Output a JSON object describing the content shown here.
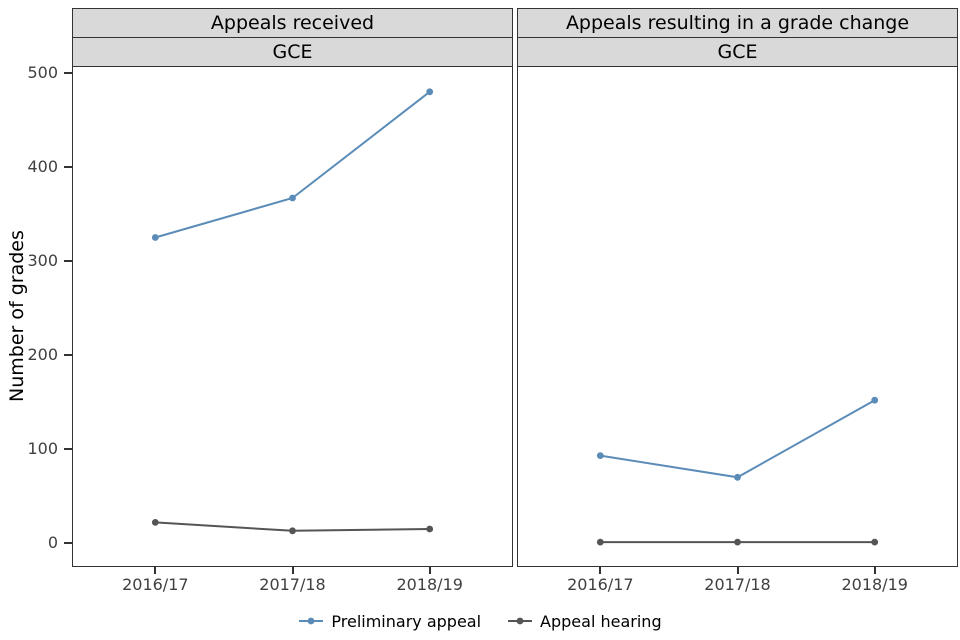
{
  "chart_data": {
    "type": "line",
    "ylabel": "Number of grades",
    "categories": [
      "2016/17",
      "2017/18",
      "2018/19"
    ],
    "yticks": [
      0,
      100,
      200,
      300,
      400,
      500
    ],
    "ylim": [
      -24.4,
      506.4
    ],
    "grid": false,
    "legend_position": "bottom",
    "facets": [
      {
        "label": "Appeals received",
        "sublabel": "GCE",
        "series": [
          {
            "name": "Preliminary appeal",
            "values": [
              325,
              367,
              480
            ]
          },
          {
            "name": "Appeal hearing",
            "values": [
              22,
              13,
              15
            ]
          }
        ]
      },
      {
        "label": "Appeals resulting in a grade change",
        "sublabel": "GCE",
        "series": [
          {
            "name": "Preliminary appeal",
            "values": [
              93,
              70,
              152
            ]
          },
          {
            "name": "Appeal hearing",
            "values": [
              1,
              1,
              1
            ]
          }
        ]
      }
    ],
    "legend": [
      {
        "name": "Preliminary appeal",
        "color": "#5b8cb8"
      },
      {
        "name": "Appeal hearing",
        "color": "#555555"
      }
    ],
    "styles": {
      "strip_fill": "#d9d9d9",
      "panel_border": "#333333",
      "tick_text": "#404040"
    }
  }
}
